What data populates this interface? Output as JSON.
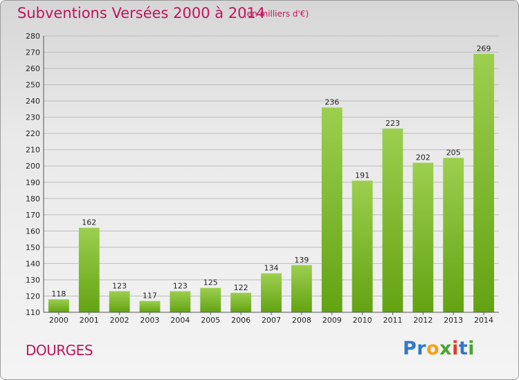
{
  "title": "Subventions Versées 2000 à 2014",
  "subtitle": "(en milliers d'€)",
  "city": "DOURGES",
  "logo": {
    "p1": "Pr",
    "p2": "o",
    "p3": "x",
    "p4": "i",
    "p5": "t",
    "p6": "i"
  },
  "colors": {
    "title": "#c0145c",
    "bar_light": "#9ccf4f",
    "bar_dark": "#63a312",
    "grid": "#bbbbbb"
  },
  "chart_data": {
    "type": "bar",
    "title": "Subventions Versées 2000 à 2014",
    "subtitle": "(en milliers d'€)",
    "categories": [
      "2000",
      "2001",
      "2002",
      "2003",
      "2004",
      "2005",
      "2006",
      "2007",
      "2008",
      "2009",
      "2010",
      "2011",
      "2012",
      "2013",
      "2014"
    ],
    "values": [
      118,
      162,
      123,
      117,
      123,
      125,
      122,
      134,
      139,
      236,
      191,
      223,
      202,
      205,
      269
    ],
    "ylim": [
      110,
      280
    ],
    "yticks": [
      110,
      120,
      130,
      140,
      150,
      160,
      170,
      180,
      190,
      200,
      210,
      220,
      230,
      240,
      250,
      260,
      270,
      280
    ],
    "grid": true,
    "xlabel": "",
    "ylabel": ""
  }
}
